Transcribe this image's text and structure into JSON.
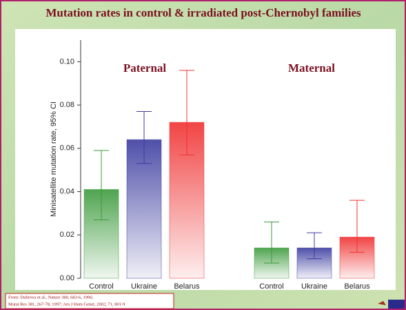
{
  "chart_data": {
    "type": "bar",
    "title": "Mutation rates in control & irradiated post-Chernobyl families",
    "ylabel": "Minisatellite mutation rate, 95% CI",
    "ylim": [
      0,
      0.11
    ],
    "yticks": [
      {
        "value": 0,
        "label": "0.00"
      },
      {
        "value": 0.02,
        "label": "0.02"
      },
      {
        "value": 0.04,
        "label": "0.04"
      },
      {
        "value": 0.06,
        "label": "0.06"
      },
      {
        "value": 0.08,
        "label": "0.08"
      },
      {
        "value": 0.1,
        "label": "0.10"
      }
    ],
    "colors": [
      "#3c9a3c",
      "#3c3ca0",
      "#f03030"
    ],
    "groups": [
      {
        "name": "Paternal",
        "categories": [
          "Control",
          "Ukraine",
          "Belarus"
        ],
        "values": [
          0.041,
          0.064,
          0.072
        ],
        "ci_low": [
          0.027,
          0.053,
          0.057
        ],
        "ci_high": [
          0.059,
          0.077,
          0.096
        ]
      },
      {
        "name": "Maternal",
        "categories": [
          "Control",
          "Ukraine",
          "Belarus"
        ],
        "values": [
          0.014,
          0.014,
          0.019
        ],
        "ci_low": [
          0.007,
          0.009,
          0.012
        ],
        "ci_high": [
          0.026,
          0.021,
          0.036
        ]
      }
    ],
    "citation": [
      "From: Dubrova et al., Nature 380, 683-6, 1996;",
      "Mutat Res 381, 267-78, 1997; Am J Hum Genet, 2002, 71, 801-9"
    ]
  }
}
